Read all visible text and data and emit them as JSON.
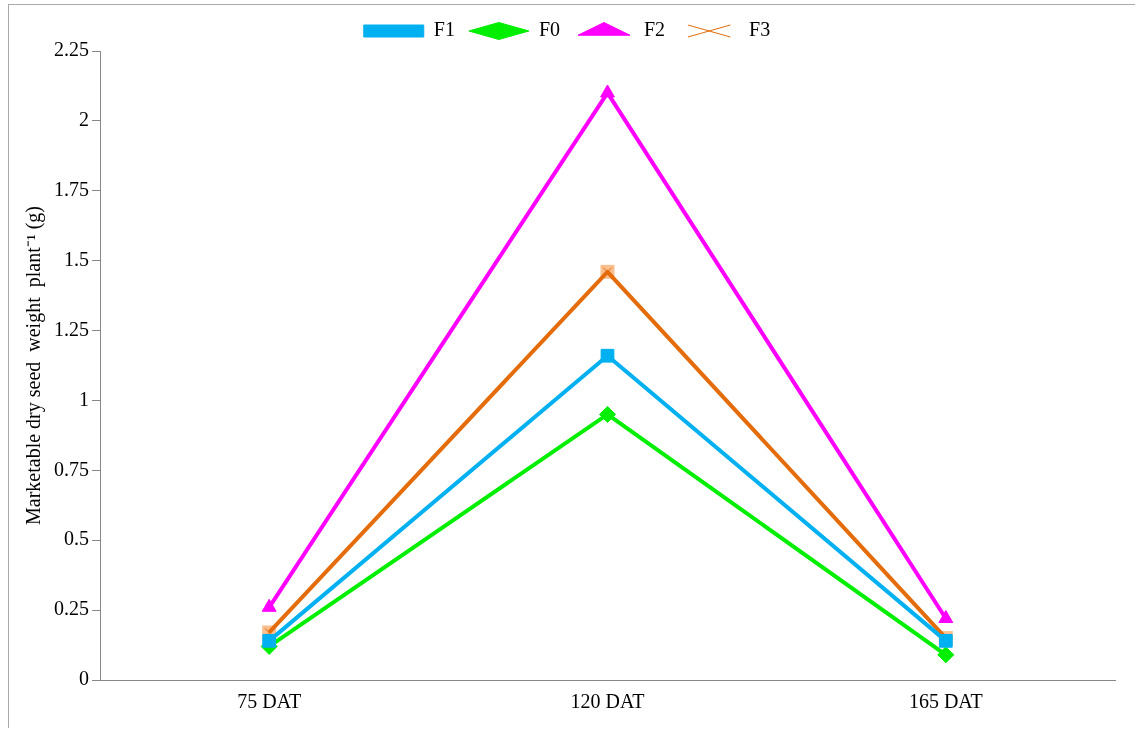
{
  "chart_data": {
    "type": "line",
    "ylabel": "Marketable dry seed  weight  plant⁻¹ (g)",
    "categories": [
      "75 DAT",
      "120 DAT",
      "165 DAT"
    ],
    "series": [
      {
        "name": "F0",
        "color": "#00ee00",
        "marker": "diamond",
        "values": [
          0.12,
          0.95,
          0.09
        ]
      },
      {
        "name": "F1",
        "color": "#00b0f0",
        "marker": "square",
        "values": [
          0.14,
          1.16,
          0.14
        ]
      },
      {
        "name": "F2",
        "color": "#ff00ff",
        "marker": "triangle",
        "values": [
          0.26,
          2.1,
          0.22
        ]
      },
      {
        "name": "F3",
        "color": "#e46c0a",
        "marker": "cross",
        "values": [
          0.17,
          1.46,
          0.15
        ]
      }
    ],
    "ylim": [
      0,
      2.25
    ],
    "yticks": [
      0,
      0.25,
      0.5,
      0.75,
      1,
      1.25,
      1.5,
      1.75,
      2,
      2.25
    ],
    "grid": false,
    "legend": "top"
  }
}
